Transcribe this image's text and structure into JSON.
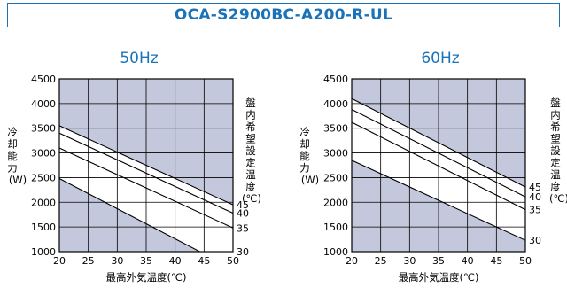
{
  "header": {
    "title": "OCA-S2900BC-A200-R-UL"
  },
  "colors": {
    "accent": "#1a73b8",
    "panel": "#c3c8dc",
    "grid": "#000000"
  },
  "chart_data": [
    {
      "type": "line",
      "title": "50Hz",
      "xlabel": "最高外気温度(℃)",
      "ylabel": [
        "冷",
        "却",
        "能",
        "力",
        "(W)"
      ],
      "series_label": [
        "盤",
        "内",
        "希",
        "望",
        "設",
        "定",
        "温",
        "度",
        "(℃)"
      ],
      "xlim": [
        20,
        50
      ],
      "ylim": [
        1000,
        4500
      ],
      "xticks": [
        20,
        25,
        30,
        35,
        40,
        45,
        50
      ],
      "yticks": [
        1000,
        1500,
        2000,
        2500,
        3000,
        3500,
        4000,
        4500
      ],
      "grid": true,
      "series": [
        {
          "name": "45",
          "x": [
            20,
            50
          ],
          "y": [
            3550,
            1950
          ]
        },
        {
          "name": "40",
          "x": [
            20,
            50
          ],
          "y": [
            3400,
            1780
          ]
        },
        {
          "name": "35",
          "x": [
            20,
            50
          ],
          "y": [
            3100,
            1480
          ]
        },
        {
          "name": "30",
          "x": [
            20,
            50
          ],
          "y": [
            2480,
            650
          ]
        }
      ]
    },
    {
      "type": "line",
      "title": "60Hz",
      "xlabel": "最高外気温度(℃)",
      "ylabel": [
        "冷",
        "却",
        "能",
        "力",
        "(W)"
      ],
      "series_label": [
        "盤",
        "内",
        "希",
        "望",
        "設",
        "定",
        "温",
        "度",
        "(℃)"
      ],
      "xlim": [
        20,
        50
      ],
      "ylim": [
        1000,
        4500
      ],
      "xticks": [
        20,
        25,
        30,
        35,
        40,
        45,
        50
      ],
      "yticks": [
        1000,
        1500,
        2000,
        2500,
        3000,
        3500,
        4000,
        4500
      ],
      "grid": true,
      "series": [
        {
          "name": "45",
          "x": [
            20,
            50
          ],
          "y": [
            4100,
            2310
          ]
        },
        {
          "name": "40",
          "x": [
            20,
            50
          ],
          "y": [
            3880,
            2110
          ]
        },
        {
          "name": "35",
          "x": [
            20,
            50
          ],
          "y": [
            3620,
            1850
          ]
        },
        {
          "name": "30",
          "x": [
            20,
            50
          ],
          "y": [
            2850,
            1230
          ]
        }
      ]
    }
  ]
}
